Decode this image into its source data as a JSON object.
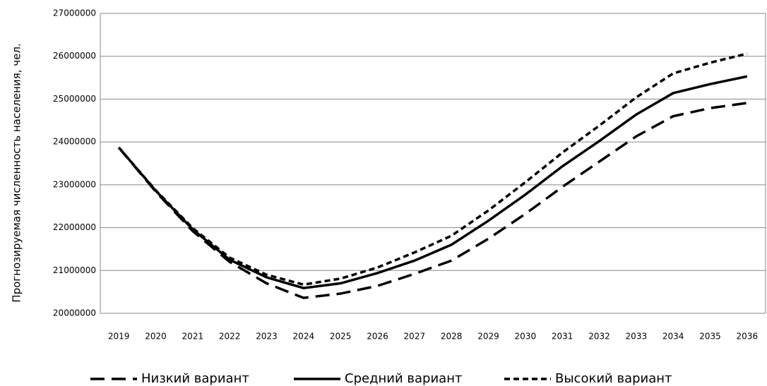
{
  "chart_data": {
    "type": "line",
    "y_label": "Прогнозируемая численность населения, чел.",
    "categories": [
      "2019",
      "2020",
      "2021",
      "2022",
      "2023",
      "2024",
      "2025",
      "2026",
      "2027",
      "2028",
      "2029",
      "2030",
      "2031",
      "2032",
      "2033",
      "2034",
      "2035",
      "2036"
    ],
    "series": [
      {
        "name": "Низкий вариант",
        "color": "#000000",
        "dash": "20,10",
        "values": [
          23870000,
          22840000,
          21920000,
          21200000,
          20700000,
          20360000,
          20460000,
          20640000,
          20920000,
          21230000,
          21740000,
          22320000,
          22950000,
          23540000,
          24130000,
          24600000,
          24790000,
          24910000
        ]
      },
      {
        "name": "Средний вариант",
        "color": "#000000",
        "dash": "none",
        "values": [
          23870000,
          22860000,
          21960000,
          21250000,
          20840000,
          20590000,
          20700000,
          20940000,
          21230000,
          21600000,
          22160000,
          22770000,
          23430000,
          24020000,
          24640000,
          25140000,
          25350000,
          25530000
        ]
      },
      {
        "name": "Высокий вариант",
        "color": "#000000",
        "dash": "8,5",
        "values": [
          23870000,
          22870000,
          21990000,
          21300000,
          20900000,
          20670000,
          20810000,
          21070000,
          21420000,
          21810000,
          22400000,
          23060000,
          23750000,
          24380000,
          25040000,
          25600000,
          25850000,
          26060000
        ]
      }
    ],
    "ylim": [
      20000000,
      27000000
    ],
    "yticks": [
      20000000,
      21000000,
      22000000,
      23000000,
      24000000,
      25000000,
      26000000,
      27000000
    ],
    "grid": true,
    "legend": "bottom"
  }
}
